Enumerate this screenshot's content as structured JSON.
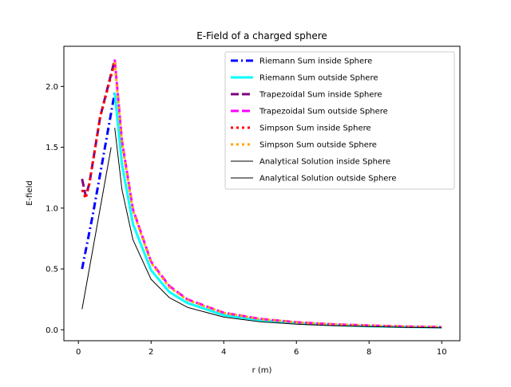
{
  "chart_data": {
    "type": "line",
    "title": "E-Field of a charged sphere",
    "xlabel": "r (m)",
    "ylabel": "E-field",
    "xlim": [
      -0.4,
      10.5
    ],
    "ylim": [
      -0.09,
      2.33
    ],
    "xticks": [
      0,
      2,
      4,
      6,
      8,
      10
    ],
    "xtick_labels": [
      "0",
      "2",
      "4",
      "6",
      "8",
      "10"
    ],
    "yticks": [
      0.0,
      0.5,
      1.0,
      1.5,
      2.0
    ],
    "ytick_labels": [
      "0.0",
      "0.5",
      "1.0",
      "1.5",
      "2.0"
    ],
    "grid": false,
    "legend_position": "top-right",
    "series": [
      {
        "name": "Riemann Sum inside Sphere",
        "color": "#0000ff",
        "style": "dashdot",
        "width": 3,
        "x": [
          0.1,
          0.4,
          0.7,
          1.0
        ],
        "y": [
          0.5,
          0.95,
          1.45,
          1.95
        ]
      },
      {
        "name": "Riemann Sum outside Sphere",
        "color": "#00ffff",
        "style": "solid",
        "width": 3,
        "x": [
          1.0,
          1.2,
          1.5,
          2.0,
          2.5,
          3.0,
          4.0,
          5.0,
          6.0,
          7.0,
          8.0,
          9.0,
          10.0
        ],
        "y": [
          1.95,
          1.36,
          0.87,
          0.49,
          0.31,
          0.22,
          0.12,
          0.08,
          0.054,
          0.04,
          0.03,
          0.024,
          0.02
        ]
      },
      {
        "name": "Trapezoidal Sum inside Sphere",
        "color": "#800080",
        "style": "dashed",
        "width": 3,
        "x": [
          0.1,
          0.2,
          0.3,
          0.6,
          1.0
        ],
        "y": [
          1.24,
          1.1,
          1.2,
          1.75,
          2.22
        ]
      },
      {
        "name": "Trapezoidal Sum outside Sphere",
        "color": "#ff00ff",
        "style": "dashed",
        "width": 3,
        "x": [
          1.0,
          1.2,
          1.5,
          2.0,
          2.5,
          3.0,
          4.0,
          5.0,
          6.0,
          7.0,
          8.0,
          9.0,
          10.0
        ],
        "y": [
          2.22,
          1.55,
          0.99,
          0.56,
          0.36,
          0.25,
          0.14,
          0.09,
          0.062,
          0.045,
          0.035,
          0.027,
          0.022
        ]
      },
      {
        "name": "Simpson Sum inside Sphere",
        "color": "#ff0000",
        "style": "dotted",
        "width": 3,
        "x": [
          0.1,
          0.2,
          0.3,
          0.6,
          1.0
        ],
        "y": [
          1.15,
          1.08,
          1.2,
          1.75,
          2.2
        ]
      },
      {
        "name": "Simpson Sum outside Sphere",
        "color": "#ffa500",
        "style": "dotted",
        "width": 3,
        "x": [
          1.0,
          1.2,
          1.5,
          2.0,
          2.5,
          3.0,
          4.0,
          5.0,
          6.0,
          7.0,
          8.0,
          9.0,
          10.0
        ],
        "y": [
          2.2,
          1.53,
          0.98,
          0.55,
          0.35,
          0.245,
          0.138,
          0.088,
          0.061,
          0.045,
          0.034,
          0.027,
          0.022
        ]
      },
      {
        "name": "Analytical Solution inside Sphere",
        "color": "#000000",
        "style": "solid",
        "width": 1,
        "x": [
          0.1,
          0.9
        ],
        "y": [
          0.17,
          1.5
        ]
      },
      {
        "name": "Analytical Solution outside Sphere",
        "color": "#000000",
        "style": "solid",
        "width": 1,
        "x": [
          1.0,
          1.2,
          1.5,
          2.0,
          2.5,
          3.0,
          4.0,
          5.0,
          6.0,
          7.0,
          8.0,
          9.0,
          10.0
        ],
        "y": [
          1.66,
          1.15,
          0.74,
          0.415,
          0.265,
          0.185,
          0.104,
          0.066,
          0.046,
          0.034,
          0.026,
          0.02,
          0.017
        ]
      }
    ]
  }
}
